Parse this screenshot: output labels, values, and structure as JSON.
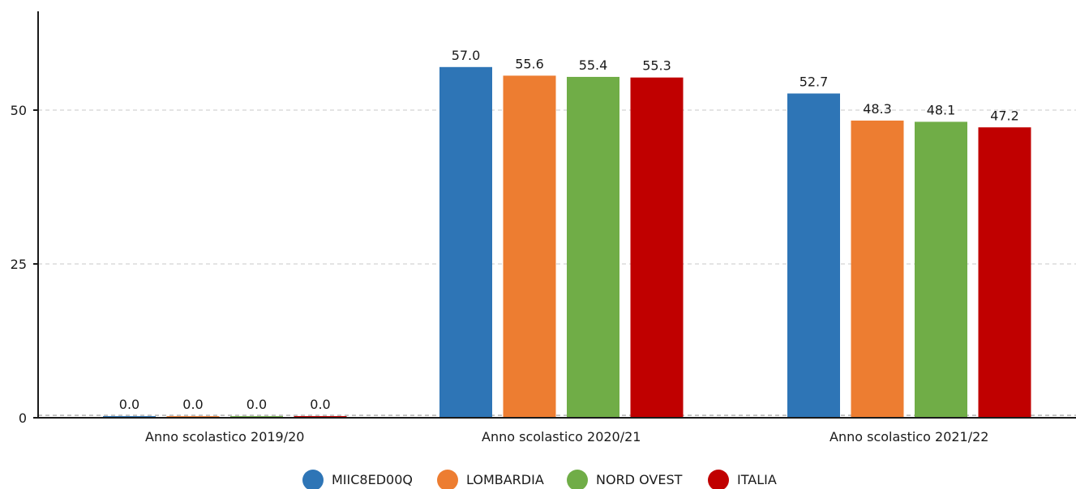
{
  "chart_data": {
    "type": "bar",
    "categories": [
      "Anno scolastico 2019/20",
      "Anno scolastico 2020/21",
      "Anno scolastico 2021/22"
    ],
    "series": [
      {
        "name": "MIIC8ED00Q",
        "color": "#2e75b6",
        "values": [
          0.0,
          57.0,
          52.7
        ],
        "labels": [
          "0.0",
          "57.0",
          "52.7"
        ]
      },
      {
        "name": "LOMBARDIA",
        "color": "#ed7d31",
        "values": [
          0.0,
          55.6,
          48.3
        ],
        "labels": [
          "0.0",
          "55.6",
          "48.3"
        ]
      },
      {
        "name": "NORD OVEST",
        "color": "#70ad47",
        "values": [
          0.0,
          55.4,
          48.1
        ],
        "labels": [
          "0.0",
          "55.4",
          "48.1"
        ]
      },
      {
        "name": "ITALIA",
        "color": "#c00000",
        "values": [
          0.0,
          55.3,
          47.2
        ],
        "labels": [
          "0.0",
          "55.3",
          "47.2"
        ]
      }
    ],
    "yticks": [
      0,
      25,
      50
    ],
    "ytick_labels": [
      "0",
      "25",
      "50"
    ],
    "ylim": [
      0,
      66
    ],
    "grid": true,
    "legend_position": "bottom-center"
  }
}
